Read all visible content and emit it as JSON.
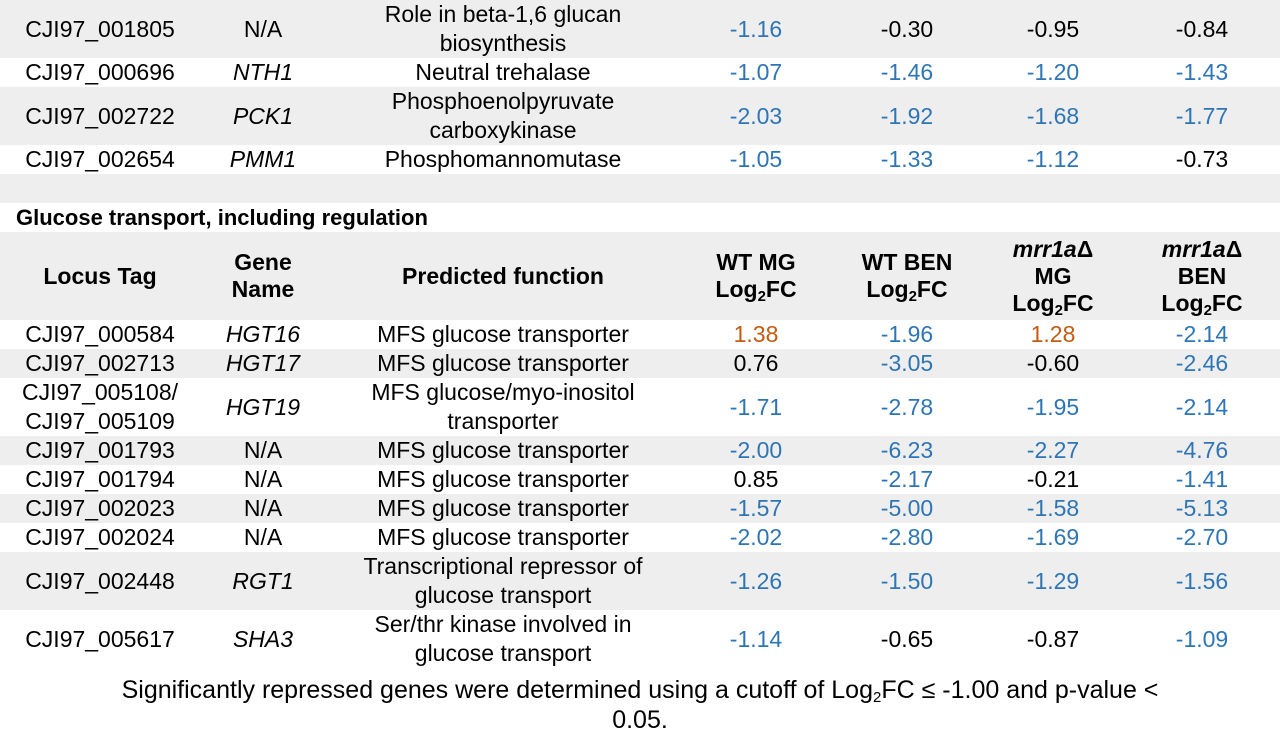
{
  "top_rows": [
    {
      "locus": "CJI97_001805",
      "gene": "N/A",
      "gene_italic": false,
      "func_l1": "Role in beta-1,6 glucan",
      "func_l2": "biosynthesis",
      "v": [
        {
          "t": "-1.16",
          "c": "neg"
        },
        {
          "t": "-0.30",
          "c": "plain"
        },
        {
          "t": "-0.95",
          "c": "plain"
        },
        {
          "t": "-0.84",
          "c": "plain"
        }
      ]
    },
    {
      "locus": "CJI97_000696",
      "gene": "NTH1",
      "gene_italic": true,
      "func_l1": "Neutral trehalase",
      "func_l2": "",
      "v": [
        {
          "t": "-1.07",
          "c": "neg"
        },
        {
          "t": "-1.46",
          "c": "neg"
        },
        {
          "t": "-1.20",
          "c": "neg"
        },
        {
          "t": "-1.43",
          "c": "neg"
        }
      ]
    },
    {
      "locus": "CJI97_002722",
      "gene": "PCK1",
      "gene_italic": true,
      "func_l1": "Phosphoenolpyruvate",
      "func_l2": "carboxykinase",
      "v": [
        {
          "t": "-2.03",
          "c": "neg"
        },
        {
          "t": "-1.92",
          "c": "neg"
        },
        {
          "t": "-1.68",
          "c": "neg"
        },
        {
          "t": "-1.77",
          "c": "neg"
        }
      ]
    },
    {
      "locus": "CJI97_002654",
      "gene": "PMM1",
      "gene_italic": true,
      "func_l1": "Phosphomannomutase",
      "func_l2": "",
      "v": [
        {
          "t": "-1.05",
          "c": "neg"
        },
        {
          "t": "-1.33",
          "c": "neg"
        },
        {
          "t": "-1.12",
          "c": "neg"
        },
        {
          "t": "-0.73",
          "c": "plain"
        }
      ]
    }
  ],
  "section_title": "Glucose transport, including regulation",
  "header": {
    "locus": "Locus Tag",
    "gene_l1": "Gene",
    "gene_l2": "Name",
    "func": "Predicted function",
    "wtmg_l1": "WT MG",
    "wtben_l1": "WT BEN",
    "mrr_strain": "mrr1a",
    "delta": "Δ",
    "mg": "MG",
    "ben": "BEN",
    "log": "Log",
    "sub2": "2",
    "fc": "FC"
  },
  "glucose_rows": [
    {
      "locus": "CJI97_000584",
      "locus_l2": "",
      "gene": "HGT16",
      "gene_italic": true,
      "func_l1": "MFS glucose transporter",
      "func_l2": "",
      "v": [
        {
          "t": "1.38",
          "c": "pos"
        },
        {
          "t": "-1.96",
          "c": "neg"
        },
        {
          "t": "1.28",
          "c": "pos"
        },
        {
          "t": "-2.14",
          "c": "neg"
        }
      ]
    },
    {
      "locus": "CJI97_002713",
      "locus_l2": "",
      "gene": "HGT17",
      "gene_italic": true,
      "func_l1": "MFS glucose transporter",
      "func_l2": "",
      "v": [
        {
          "t": "0.76",
          "c": "plain"
        },
        {
          "t": "-3.05",
          "c": "neg"
        },
        {
          "t": "-0.60",
          "c": "plain"
        },
        {
          "t": "-2.46",
          "c": "neg"
        }
      ]
    },
    {
      "locus": "CJI97_005108/",
      "locus_l2": "CJI97_005109",
      "gene": "HGT19",
      "gene_italic": true,
      "func_l1": "MFS glucose/myo-inositol",
      "func_l2": "transporter",
      "v": [
        {
          "t": "-1.71",
          "c": "neg"
        },
        {
          "t": "-2.78",
          "c": "neg"
        },
        {
          "t": "-1.95",
          "c": "neg"
        },
        {
          "t": "-2.14",
          "c": "neg"
        }
      ]
    },
    {
      "locus": "CJI97_001793",
      "locus_l2": "",
      "gene": "N/A",
      "gene_italic": false,
      "func_l1": "MFS glucose transporter",
      "func_l2": "",
      "v": [
        {
          "t": "-2.00",
          "c": "neg"
        },
        {
          "t": "-6.23",
          "c": "neg"
        },
        {
          "t": "-2.27",
          "c": "neg"
        },
        {
          "t": "-4.76",
          "c": "neg"
        }
      ]
    },
    {
      "locus": "CJI97_001794",
      "locus_l2": "",
      "gene": "N/A",
      "gene_italic": false,
      "func_l1": "MFS glucose transporter",
      "func_l2": "",
      "v": [
        {
          "t": "0.85",
          "c": "plain"
        },
        {
          "t": "-2.17",
          "c": "neg"
        },
        {
          "t": "-0.21",
          "c": "plain"
        },
        {
          "t": "-1.41",
          "c": "neg"
        }
      ]
    },
    {
      "locus": "CJI97_002023",
      "locus_l2": "",
      "gene": "N/A",
      "gene_italic": false,
      "func_l1": "MFS glucose transporter",
      "func_l2": "",
      "v": [
        {
          "t": "-1.57",
          "c": "neg"
        },
        {
          "t": "-5.00",
          "c": "neg"
        },
        {
          "t": "-1.58",
          "c": "neg"
        },
        {
          "t": "-5.13",
          "c": "neg"
        }
      ]
    },
    {
      "locus": "CJI97_002024",
      "locus_l2": "",
      "gene": "N/A",
      "gene_italic": false,
      "func_l1": "MFS glucose transporter",
      "func_l2": "",
      "v": [
        {
          "t": "-2.02",
          "c": "neg"
        },
        {
          "t": "-2.80",
          "c": "neg"
        },
        {
          "t": "-1.69",
          "c": "neg"
        },
        {
          "t": "-2.70",
          "c": "neg"
        }
      ]
    },
    {
      "locus": "CJI97_002448",
      "locus_l2": "",
      "gene": "RGT1",
      "gene_italic": true,
      "func_l1": "Transcriptional repressor of",
      "func_l2": "glucose transport",
      "v": [
        {
          "t": "-1.26",
          "c": "neg"
        },
        {
          "t": "-1.50",
          "c": "neg"
        },
        {
          "t": "-1.29",
          "c": "neg"
        },
        {
          "t": "-1.56",
          "c": "neg"
        }
      ]
    },
    {
      "locus": "CJI97_005617",
      "locus_l2": "",
      "gene": "SHA3",
      "gene_italic": true,
      "func_l1": "Ser/thr kinase involved in",
      "func_l2": "glucose transport",
      "v": [
        {
          "t": "-1.14",
          "c": "neg"
        },
        {
          "t": "-0.65",
          "c": "plain"
        },
        {
          "t": "-0.87",
          "c": "plain"
        },
        {
          "t": "-1.09",
          "c": "neg"
        }
      ]
    }
  ],
  "footnote": {
    "part1": "Significantly repressed genes were determined using a cutoff of Log",
    "sub": "2",
    "part2": "FC ≤ -1.00 and p-value <",
    "part3": "0.05."
  },
  "colors": {
    "repressed": "#2e75b6",
    "induced": "#c55a11",
    "row_shade": "#eeeeee"
  }
}
